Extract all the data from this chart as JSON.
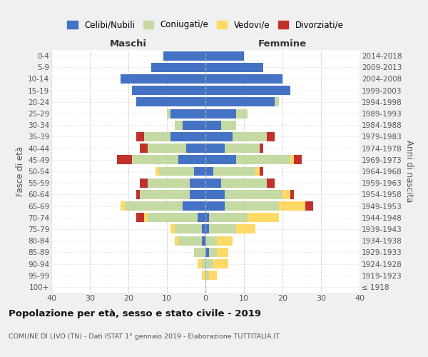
{
  "age_groups": [
    "100+",
    "95-99",
    "90-94",
    "85-89",
    "80-84",
    "75-79",
    "70-74",
    "65-69",
    "60-64",
    "55-59",
    "50-54",
    "45-49",
    "40-44",
    "35-39",
    "30-34",
    "25-29",
    "20-24",
    "15-19",
    "10-14",
    "5-9",
    "0-4"
  ],
  "birth_years": [
    "≤ 1918",
    "1919-1923",
    "1924-1928",
    "1929-1933",
    "1934-1938",
    "1939-1943",
    "1944-1948",
    "1949-1953",
    "1954-1958",
    "1959-1963",
    "1964-1968",
    "1969-1973",
    "1974-1978",
    "1979-1983",
    "1984-1988",
    "1989-1993",
    "1994-1998",
    "1999-2003",
    "2004-2008",
    "2009-2013",
    "2014-2018"
  ],
  "maschi_celibi": [
    0,
    0,
    0,
    0,
    1,
    1,
    2,
    6,
    4,
    4,
    3,
    7,
    5,
    9,
    6,
    9,
    18,
    19,
    22,
    14,
    11
  ],
  "maschi_coniugati": [
    0,
    0,
    1,
    3,
    6,
    7,
    13,
    15,
    13,
    11,
    9,
    12,
    10,
    7,
    2,
    1,
    0,
    0,
    0,
    0,
    0
  ],
  "maschi_vedovi": [
    0,
    1,
    1,
    0,
    1,
    1,
    1,
    1,
    0,
    0,
    1,
    0,
    0,
    0,
    0,
    0,
    0,
    0,
    0,
    0,
    0
  ],
  "maschi_divorziati": [
    0,
    0,
    0,
    0,
    0,
    0,
    2,
    0,
    1,
    2,
    0,
    4,
    2,
    2,
    0,
    0,
    0,
    0,
    0,
    0,
    0
  ],
  "femmine_celibi": [
    0,
    0,
    0,
    1,
    0,
    1,
    1,
    5,
    5,
    4,
    2,
    8,
    5,
    7,
    4,
    8,
    18,
    22,
    20,
    15,
    10
  ],
  "femmine_coniugati": [
    0,
    1,
    2,
    2,
    3,
    7,
    10,
    14,
    15,
    12,
    11,
    14,
    9,
    9,
    4,
    3,
    1,
    0,
    0,
    0,
    0
  ],
  "femmine_vedovi": [
    0,
    2,
    4,
    3,
    4,
    5,
    8,
    7,
    2,
    0,
    1,
    1,
    0,
    0,
    0,
    0,
    0,
    0,
    0,
    0,
    0
  ],
  "femmine_divorziati": [
    0,
    0,
    0,
    0,
    0,
    0,
    0,
    2,
    1,
    2,
    1,
    2,
    1,
    2,
    0,
    0,
    0,
    0,
    0,
    0,
    0
  ],
  "color_celibi": "#4472C4",
  "color_coniugati": "#C5D9A3",
  "color_vedovi": "#FFD966",
  "color_divorziati": "#C0312B",
  "xlim": 40,
  "title": "Popolazione per età, sesso e stato civile - 2019",
  "subtitle": "COMUNE DI LIVO (TN) - Dati ISTAT 1° gennaio 2019 - Elaborazione TUTTITALIA.IT",
  "ylabel_left": "Fasce di età",
  "ylabel_right": "Anni di nascita",
  "label_maschi": "Maschi",
  "label_femmine": "Femmine",
  "legend_labels": [
    "Celibi/Nubili",
    "Coniugati/e",
    "Vedovi/e",
    "Divorziati/e"
  ],
  "bg_color": "#F0F0F0",
  "plot_bg": "#FFFFFF"
}
